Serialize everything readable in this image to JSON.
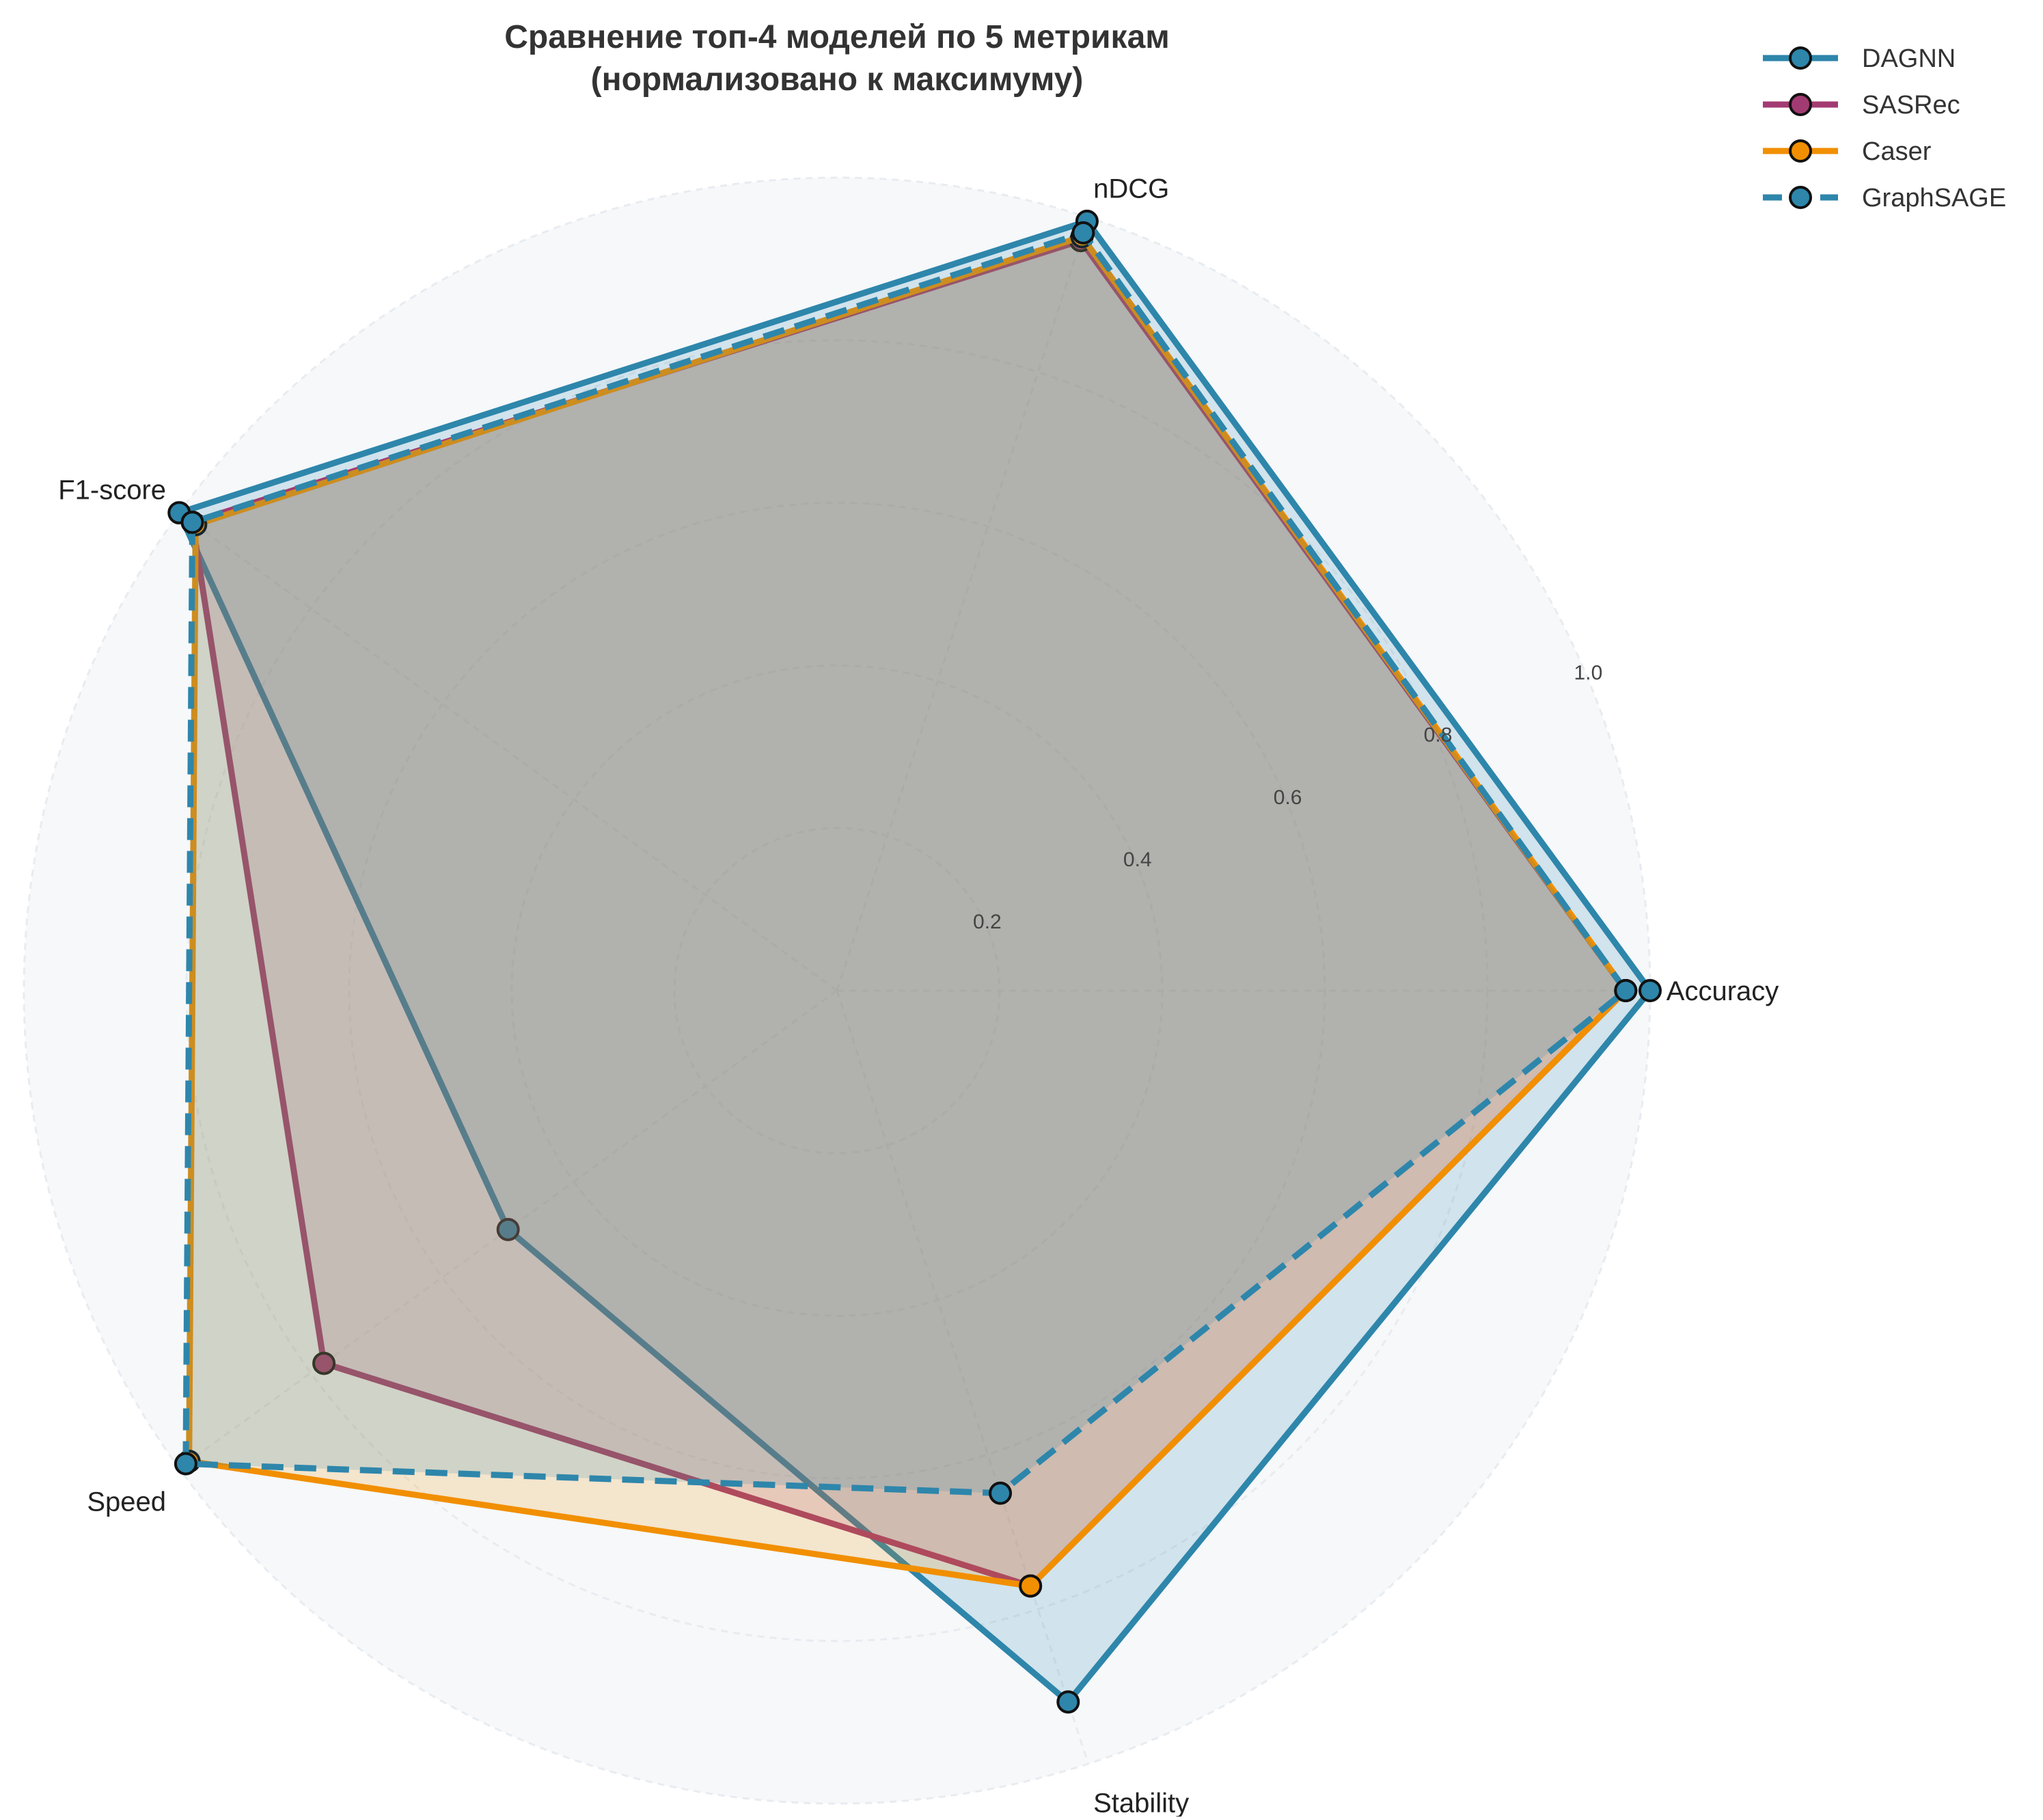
{
  "chart_data": {
    "type": "radar",
    "title": "Сравнение топ-4 моделей по 5 метрикам",
    "subtitle": "(нормализовано к максимуму)",
    "axes": [
      "Accuracy",
      "nDCG",
      "F1-score",
      "Speed",
      "Stability"
    ],
    "rlim": [
      0,
      1.0
    ],
    "rticks": [
      "0.2",
      "0.4",
      "0.6",
      "0.8",
      "1.0"
    ],
    "rtick_values": [
      0.2,
      0.4,
      0.6,
      0.8,
      1.0
    ],
    "legend_position": "top-right",
    "series": [
      {
        "name": "DAGNN",
        "values": [
          1.0,
          0.995,
          1.0,
          0.5,
          0.92
        ],
        "color": "#2E86AB",
        "dash": false
      },
      {
        "name": "SASRec",
        "values": [
          0.97,
          0.97,
          0.98,
          0.78,
          0.77
        ],
        "color": "#A23B72",
        "dash": false
      },
      {
        "name": "Caser",
        "values": [
          0.97,
          0.975,
          0.975,
          0.985,
          0.77
        ],
        "color": "#F18F01",
        "dash": false
      },
      {
        "name": "GraphSAGE",
        "values": [
          0.97,
          0.98,
          0.98,
          0.99,
          0.65
        ],
        "color": "#2E86AB",
        "dash": true
      }
    ]
  }
}
